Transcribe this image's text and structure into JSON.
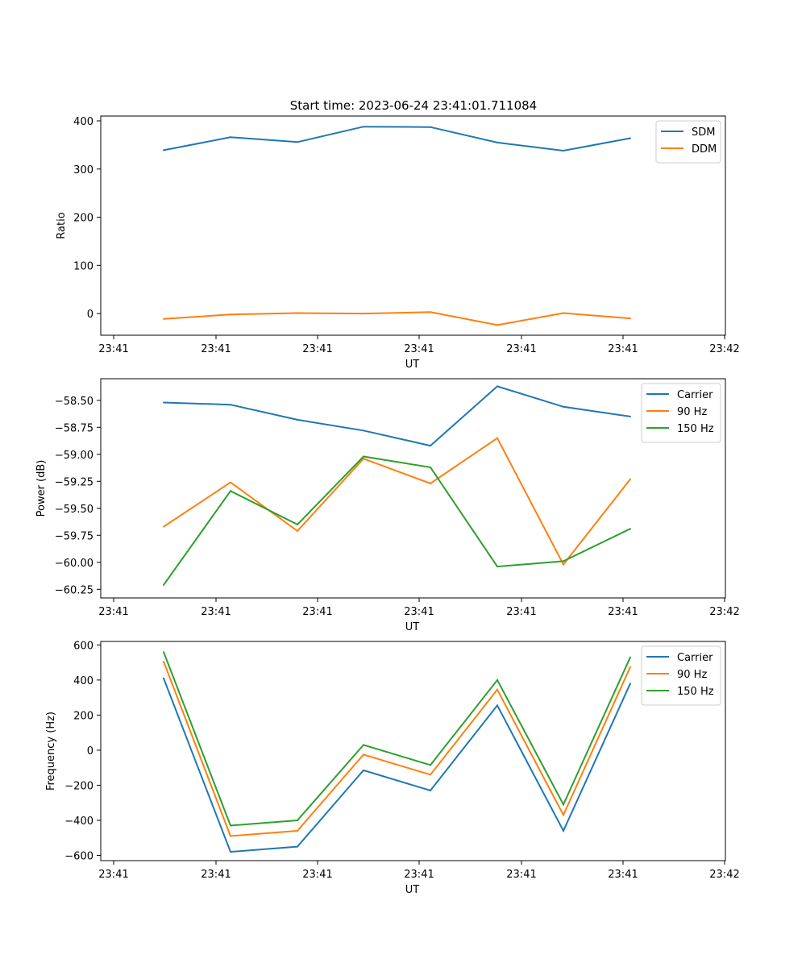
{
  "figure_title": "Start time: 2023-06-24 23:41:01.711084",
  "colors": {
    "blue": "#1f77b4",
    "orange": "#ff7f0e",
    "green": "#2ca02c"
  },
  "chart_data": [
    {
      "type": "line",
      "title": "Start time: 2023-06-24 23:41:01.711084",
      "xlabel": "UT",
      "ylabel": "Ratio",
      "x_ticks": [
        "23:41",
        "23:41",
        "23:41",
        "23:41",
        "23:41",
        "23:41",
        "23:42"
      ],
      "y_ticks": [
        0,
        100,
        200,
        300,
        400
      ],
      "ylim": [
        -45,
        410
      ],
      "grid": false,
      "legend_position": "top-right",
      "series": [
        {
          "name": "SDM",
          "color": "#1f77b4",
          "values": [
            339,
            366,
            356,
            388,
            387,
            355,
            338,
            364
          ]
        },
        {
          "name": "DDM",
          "color": "#ff7f0e",
          "values": [
            -11,
            -2,
            1,
            0,
            3,
            -24,
            1,
            -10
          ]
        }
      ]
    },
    {
      "type": "line",
      "xlabel": "UT",
      "ylabel": "Power (dB)",
      "x_ticks": [
        "23:41",
        "23:41",
        "23:41",
        "23:41",
        "23:41",
        "23:41",
        "23:42"
      ],
      "y_ticks": [
        -60.25,
        -60.0,
        -59.75,
        -59.5,
        -59.25,
        -59.0,
        -58.75,
        -58.5
      ],
      "ylim": [
        -60.33,
        -58.3
      ],
      "grid": false,
      "legend_position": "top-right",
      "series": [
        {
          "name": "Carrier",
          "color": "#1f77b4",
          "values": [
            -58.52,
            -58.54,
            -58.68,
            -58.78,
            -58.92,
            -58.37,
            -58.56,
            -58.65
          ]
        },
        {
          "name": "90 Hz",
          "color": "#ff7f0e",
          "values": [
            -59.67,
            -59.26,
            -59.71,
            -59.04,
            -59.27,
            -58.85,
            -60.02,
            -59.23
          ]
        },
        {
          "name": "150 Hz",
          "color": "#2ca02c",
          "values": [
            -60.21,
            -59.34,
            -59.65,
            -59.02,
            -59.12,
            -60.04,
            -59.99,
            -59.69
          ]
        }
      ]
    },
    {
      "type": "line",
      "xlabel": "UT",
      "ylabel": "Frequency (Hz)",
      "x_ticks": [
        "23:41",
        "23:41",
        "23:41",
        "23:41",
        "23:41",
        "23:41",
        "23:42"
      ],
      "y_ticks": [
        -600,
        -400,
        -200,
        0,
        200,
        400,
        600
      ],
      "ylim": [
        -630,
        620
      ],
      "grid": false,
      "legend_position": "top-right",
      "series": [
        {
          "name": "Carrier",
          "color": "#1f77b4",
          "values": [
            410,
            -580,
            -550,
            -115,
            -230,
            255,
            -460,
            380
          ]
        },
        {
          "name": "90 Hz",
          "color": "#ff7f0e",
          "values": [
            505,
            -490,
            -460,
            -25,
            -140,
            345,
            -370,
            475
          ]
        },
        {
          "name": "150 Hz",
          "color": "#2ca02c",
          "values": [
            560,
            -430,
            -400,
            30,
            -85,
            400,
            -310,
            530
          ]
        }
      ]
    }
  ]
}
